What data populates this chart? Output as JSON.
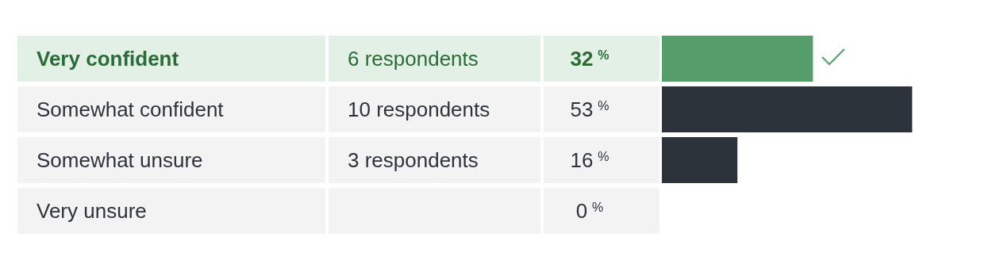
{
  "chart_data": {
    "type": "bar",
    "orientation": "horizontal",
    "categories": [
      "Very confident",
      "Somewhat confident",
      "Somewhat unsure",
      "Very unsure"
    ],
    "values": [
      32,
      53,
      16,
      0
    ],
    "value_labels": [
      "32$^{%}$",
      "53$^{%}$",
      "16$^{%}$",
      "0$^{%}$"
    ],
    "colors": [
      "#559e6a",
      "#2d333b",
      "#2d333b",
      "#2d333b"
    ],
    "annotations": [
      "6 respondents",
      "10 respondents",
      "3 respondents"
    ],
    "legend": false
  }
}
